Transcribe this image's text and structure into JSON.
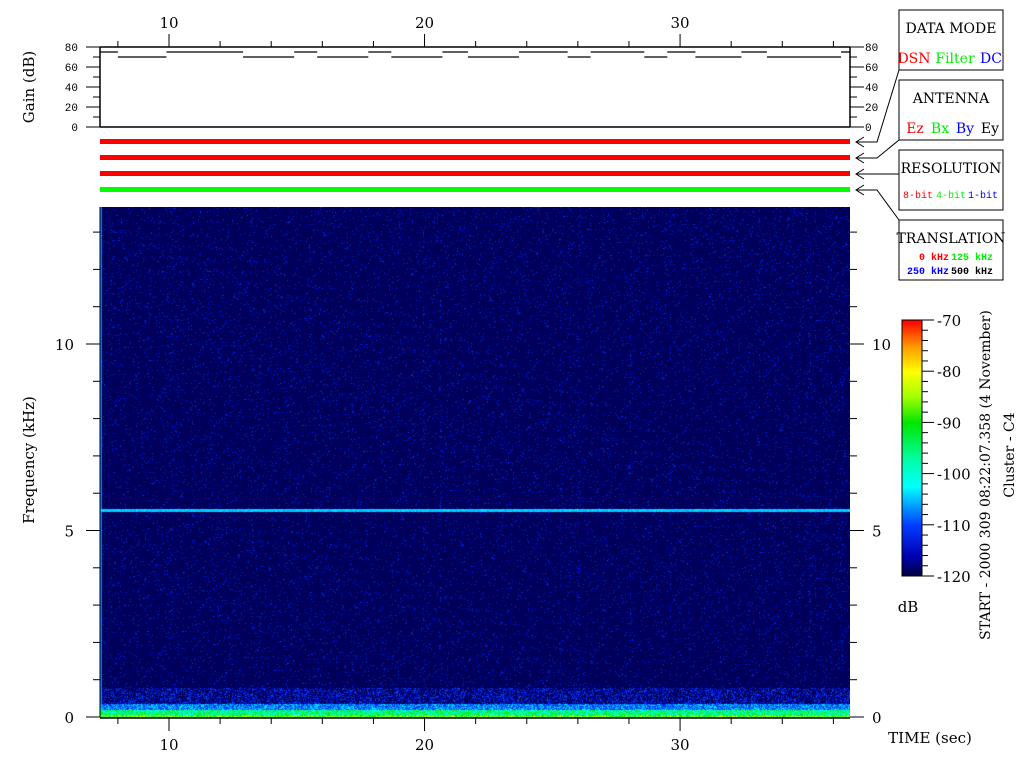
{
  "chart_data": [
    {
      "type": "line",
      "ylabel": "Gain (dB)",
      "ylim": [
        0,
        80
      ],
      "yticks": [
        "0",
        "20",
        "40",
        "60",
        "80"
      ],
      "xlim": [
        7.3,
        36.65
      ],
      "xticks": [
        "10",
        "20",
        "30"
      ],
      "step_segments": [
        [
          7.3,
          8.0,
          75
        ],
        [
          8.0,
          9.9,
          70
        ],
        [
          9.9,
          12.9,
          75
        ],
        [
          12.9,
          14.9,
          70
        ],
        [
          14.9,
          15.8,
          75
        ],
        [
          15.8,
          17.8,
          70
        ],
        [
          17.8,
          18.7,
          75
        ],
        [
          18.7,
          20.7,
          70
        ],
        [
          20.7,
          21.7,
          75
        ],
        [
          21.7,
          23.7,
          70
        ],
        [
          23.7,
          25.6,
          75
        ],
        [
          25.6,
          26.5,
          70
        ],
        [
          26.5,
          28.6,
          75
        ],
        [
          28.6,
          29.5,
          70
        ],
        [
          29.5,
          30.6,
          75
        ],
        [
          30.6,
          32.4,
          70
        ],
        [
          32.4,
          33.4,
          75
        ],
        [
          33.4,
          36.3,
          70
        ],
        [
          36.3,
          36.65,
          75
        ]
      ]
    },
    {
      "type": "heatmap",
      "xlabel": "TIME (sec)",
      "ylabel": "Frequency (kHz)",
      "xlim": [
        7.3,
        36.65
      ],
      "ylim": [
        0,
        13.7
      ],
      "xticks": [
        "10",
        "20",
        "30"
      ],
      "yticks": [
        "0",
        "5",
        "10"
      ],
      "colorbar": {
        "label": "dB",
        "range": [
          -120,
          -70
        ],
        "ticks": [
          "-70",
          "-80",
          "-90",
          "-100",
          "-110",
          "-120"
        ],
        "colormap": "rainbow"
      },
      "features": {
        "narrowband_line_khz": 5.55,
        "low_frequency_band_khz": [
          0,
          0.8
        ]
      },
      "background_color": "#00003c"
    }
  ],
  "status_bars": [
    {
      "indicator": "DATA MODE",
      "color": "#ff0000"
    },
    {
      "indicator": "ANTENNA",
      "color": "#ff0000"
    },
    {
      "indicator": "RESOLUTION",
      "color": "#ff0000"
    },
    {
      "indicator": "TRANSLATION",
      "color": "#00ff00"
    }
  ],
  "legend_boxes": {
    "data_mode": {
      "title": "DATA MODE",
      "items": [
        {
          "text": "DSN",
          "color": "#ff0000"
        },
        {
          "text": "Filter",
          "color": "#00ee00"
        },
        {
          "text": "DC",
          "color": "#0000ff"
        }
      ]
    },
    "antenna": {
      "title": "ANTENNA",
      "items": [
        {
          "text": "Ez",
          "color": "#ff0000"
        },
        {
          "text": "Bx",
          "color": "#00ee00"
        },
        {
          "text": "By",
          "color": "#0000ff"
        },
        {
          "text": "Ey",
          "color": "#000000"
        }
      ]
    },
    "resolution": {
      "title": "RESOLUTION",
      "items": [
        {
          "text": "8-bit",
          "color": "#ff0000"
        },
        {
          "text": "4-bit",
          "color": "#00ee00"
        },
        {
          "text": "1-bit",
          "color": "#0000ff"
        }
      ]
    },
    "translation": {
      "title": "TRANSLATION",
      "items": [
        {
          "text": "0 kHz",
          "color": "#ff0000"
        },
        {
          "text": "125 kHz",
          "color": "#00ee00"
        },
        {
          "text": "250 kHz",
          "color": "#0000ff"
        },
        {
          "text": "500 kHz",
          "color": "#000000"
        }
      ]
    }
  },
  "side_text": {
    "start": "START - 2000 309 08:22:07.358 (4 November)",
    "spacecraft": "Cluster - C4"
  }
}
